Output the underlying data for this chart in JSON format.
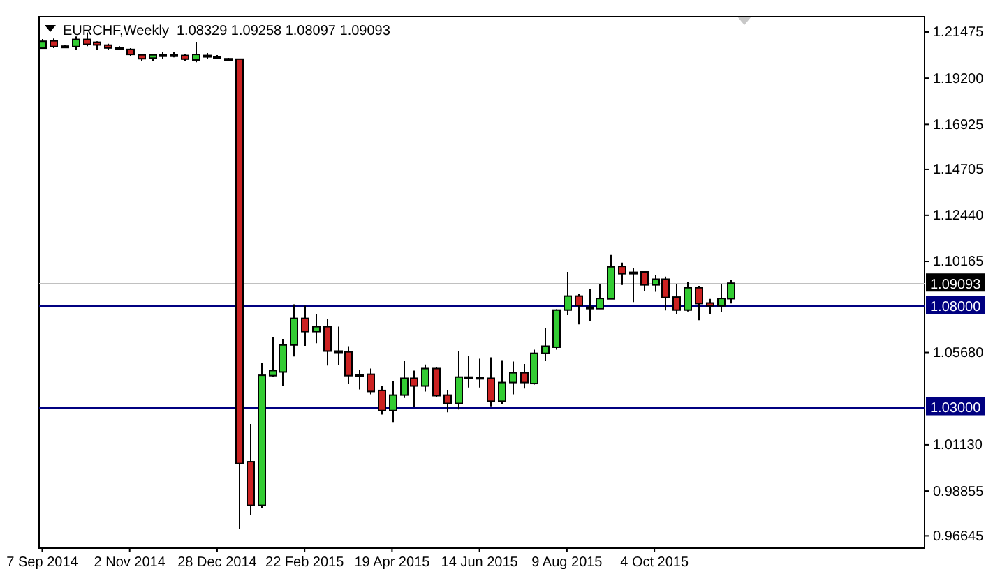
{
  "chart_data": {
    "type": "candlestick",
    "title": "EURCHF,Weekly  1.08329 1.09258 1.08097 1.09093",
    "x": [
      "2014-09-07",
      "2014-09-14",
      "2014-09-21",
      "2014-09-28",
      "2014-10-05",
      "2014-10-12",
      "2014-10-19",
      "2014-10-26",
      "2014-11-02",
      "2014-11-09",
      "2014-11-16",
      "2014-11-23",
      "2014-11-30",
      "2014-12-07",
      "2014-12-14",
      "2014-12-21",
      "2014-12-28",
      "2015-01-04",
      "2015-01-11",
      "2015-01-18",
      "2015-01-25",
      "2015-02-01",
      "2015-02-08",
      "2015-02-15",
      "2015-02-22",
      "2015-03-01",
      "2015-03-08",
      "2015-03-15",
      "2015-03-22",
      "2015-03-29",
      "2015-04-05",
      "2015-04-12",
      "2015-04-19",
      "2015-04-26",
      "2015-05-03",
      "2015-05-10",
      "2015-05-17",
      "2015-05-24",
      "2015-05-31",
      "2015-06-07",
      "2015-06-14",
      "2015-06-21",
      "2015-06-28",
      "2015-07-05",
      "2015-07-12",
      "2015-07-19",
      "2015-07-26",
      "2015-08-02",
      "2015-08-09",
      "2015-08-16",
      "2015-08-23",
      "2015-08-30",
      "2015-09-06",
      "2015-09-13",
      "2015-09-20",
      "2015-09-27",
      "2015-10-04",
      "2015-10-11",
      "2015-10-18",
      "2015-10-25",
      "2015-11-01",
      "2015-11-08",
      "2015-11-15",
      "2015-11-22"
    ],
    "ohlc": [
      [
        1.2068,
        1.2113,
        1.2065,
        1.2102
      ],
      [
        1.2104,
        1.2116,
        1.2068,
        1.2076
      ],
      [
        1.2078,
        1.2085,
        1.2071,
        1.2078
      ],
      [
        1.2076,
        1.2126,
        1.2058,
        1.2111
      ],
      [
        1.2111,
        1.2145,
        1.2078,
        1.2087
      ],
      [
        1.2097,
        1.2102,
        1.2061,
        1.2084
      ],
      [
        1.2083,
        1.209,
        1.2061,
        1.2069
      ],
      [
        1.2069,
        1.2078,
        1.2058,
        1.2069
      ],
      [
        1.2062,
        1.2068,
        1.203,
        1.2037
      ],
      [
        1.2035,
        1.204,
        1.2006,
        1.2016
      ],
      [
        1.2019,
        1.2037,
        1.2006,
        1.2035
      ],
      [
        1.2035,
        1.2051,
        1.2013,
        1.2035
      ],
      [
        1.2035,
        1.2051,
        1.2023,
        1.2035
      ],
      [
        1.2032,
        1.204,
        1.2006,
        1.2014
      ],
      [
        1.201,
        1.2099,
        1.1999,
        1.2037
      ],
      [
        1.2032,
        1.2044,
        1.2017,
        1.2032
      ],
      [
        1.2025,
        1.2034,
        1.2013,
        1.2025
      ],
      [
        1.2016,
        1.202,
        1.201,
        1.2016
      ],
      [
        1.2014,
        1.2016,
        0.9698,
        1.0021
      ],
      [
        1.003,
        1.0216,
        0.9767,
        0.9815
      ],
      [
        0.9815,
        1.0518,
        0.9803,
        1.0456
      ],
      [
        1.0454,
        1.0644,
        1.0446,
        1.0479
      ],
      [
        1.0472,
        1.0635,
        1.0403,
        1.0605
      ],
      [
        1.0605,
        1.0805,
        1.0548,
        1.0736
      ],
      [
        1.0736,
        1.0798,
        1.0601,
        1.0671
      ],
      [
        1.0671,
        1.0759,
        1.0614,
        1.0695
      ],
      [
        1.0695,
        1.0733,
        1.0504,
        1.0575
      ],
      [
        1.0575,
        1.0695,
        1.0506,
        1.0575
      ],
      [
        1.0571,
        1.0599,
        1.0413,
        1.0454
      ],
      [
        1.0458,
        1.0484,
        1.0386,
        1.0458
      ],
      [
        1.0461,
        1.0489,
        1.0362,
        1.0376
      ],
      [
        1.0381,
        1.0401,
        1.0262,
        1.0282
      ],
      [
        1.0282,
        1.0427,
        1.0225,
        1.0358
      ],
      [
        1.0358,
        1.0525,
        1.0344,
        1.0441
      ],
      [
        1.0441,
        1.0479,
        1.0298,
        1.0403
      ],
      [
        1.0403,
        1.0509,
        1.0376,
        1.0489
      ],
      [
        1.0489,
        1.0498,
        1.0348,
        1.0355
      ],
      [
        1.0358,
        1.0381,
        1.0273,
        1.0317
      ],
      [
        1.0317,
        1.0573,
        1.0287,
        1.0447
      ],
      [
        1.0447,
        1.055,
        1.0395,
        1.0447
      ],
      [
        1.0445,
        1.0537,
        1.0395,
        1.0445
      ],
      [
        1.0441,
        1.0544,
        1.0303,
        1.0328
      ],
      [
        1.0328,
        1.053,
        1.0312,
        1.042
      ],
      [
        1.042,
        1.0523,
        1.0362,
        1.0468
      ],
      [
        1.0468,
        1.0511,
        1.039,
        1.042
      ],
      [
        1.0415,
        1.0582,
        1.041,
        1.0564
      ],
      [
        1.0564,
        1.069,
        1.0525,
        1.0599
      ],
      [
        1.0594,
        1.0781,
        1.0582,
        1.0777
      ],
      [
        1.0777,
        1.0965,
        1.0752,
        1.0846
      ],
      [
        1.0846,
        1.0855,
        1.0706,
        1.08
      ],
      [
        1.0791,
        1.088,
        1.0724,
        1.0791
      ],
      [
        1.0784,
        1.0903,
        1.0784,
        1.0834
      ],
      [
        1.0832,
        1.1052,
        1.0832,
        1.099
      ],
      [
        1.0992,
        1.1011,
        1.0901,
        1.0956
      ],
      [
        1.0963,
        1.0986,
        1.0816,
        1.0963
      ],
      [
        1.0965,
        1.0965,
        1.0871,
        1.0901
      ],
      [
        1.0901,
        1.0949,
        1.0867,
        1.0929
      ],
      [
        1.0929,
        1.0942,
        1.0775,
        1.0839
      ],
      [
        1.0841,
        1.0903,
        1.0757,
        1.0777
      ],
      [
        1.0777,
        1.0915,
        1.077,
        1.0887
      ],
      [
        1.0887,
        1.0896,
        1.0727,
        1.0809
      ],
      [
        1.0812,
        1.0832,
        1.0757,
        1.0798
      ],
      [
        1.0798,
        1.0905,
        1.0768,
        1.0834
      ],
      [
        1.08329,
        1.09258,
        1.08097,
        1.09093
      ]
    ],
    "colors": [
      "#33cc33",
      "#cc2222",
      "#000000",
      "#33cc33",
      "#cc2222",
      "#cc2222",
      "#cc2222",
      "#000000",
      "#cc2222",
      "#cc2222",
      "#33cc33",
      "#000000",
      "#000000",
      "#cc2222",
      "#33cc33",
      "#000000",
      "#000000",
      "#000000",
      "#cc2222",
      "#cc2222",
      "#33cc33",
      "#33cc33",
      "#33cc33",
      "#33cc33",
      "#cc2222",
      "#33cc33",
      "#cc2222",
      "#000000",
      "#cc2222",
      "#000000",
      "#cc2222",
      "#cc2222",
      "#33cc33",
      "#33cc33",
      "#cc2222",
      "#33cc33",
      "#cc2222",
      "#cc2222",
      "#33cc33",
      "#000000",
      "#000000",
      "#cc2222",
      "#33cc33",
      "#33cc33",
      "#cc2222",
      "#33cc33",
      "#33cc33",
      "#33cc33",
      "#33cc33",
      "#cc2222",
      "#000000",
      "#33cc33",
      "#33cc33",
      "#cc2222",
      "#000000",
      "#cc2222",
      "#33cc33",
      "#cc2222",
      "#cc2222",
      "#33cc33",
      "#cc2222",
      "#cc2222",
      "#33cc33",
      "#33cc33"
    ],
    "xlim": [
      "2014-09-05",
      "2016-03-25"
    ],
    "xticks": [
      {
        "value": "2014-09-07",
        "label": "7 Sep 2014"
      },
      {
        "value": "2014-11-02",
        "label": "2 Nov 2014"
      },
      {
        "value": "2014-12-28",
        "label": "28 Dec 2014"
      },
      {
        "value": "2015-02-22",
        "label": "22 Feb 2015"
      },
      {
        "value": "2015-04-19",
        "label": "19 Apr 2015"
      },
      {
        "value": "2015-06-14",
        "label": "14 Jun 2015"
      },
      {
        "value": "2015-08-09",
        "label": "9 Aug 2015"
      },
      {
        "value": "2015-10-04",
        "label": "4 Oct 2015"
      }
    ],
    "ylim": [
      0.9604,
      1.2223
    ],
    "yticks": [
      1.21475,
      {
        "value": 1.192,
        "label": "1.19200"
      },
      1.16925,
      1.14705,
      {
        "value": 1.1244,
        "label": "1.12440"
      },
      1.10165,
      {
        "value": 1.0568,
        "label": "1.05680"
      },
      {
        "value": 1.0113,
        "label": "1.01130"
      },
      0.98855,
      0.96645
    ],
    "ref_lines": [
      {
        "axis": "y",
        "value": 1.09093,
        "label": "1.09093",
        "color": "#c0c0c0"
      },
      {
        "axis": "y",
        "value": 1.08,
        "label": "1.08000",
        "color": "#000080"
      },
      {
        "axis": "y",
        "value": 1.03,
        "label": "1.03000",
        "color": "#000080"
      }
    ],
    "grid": false
  }
}
